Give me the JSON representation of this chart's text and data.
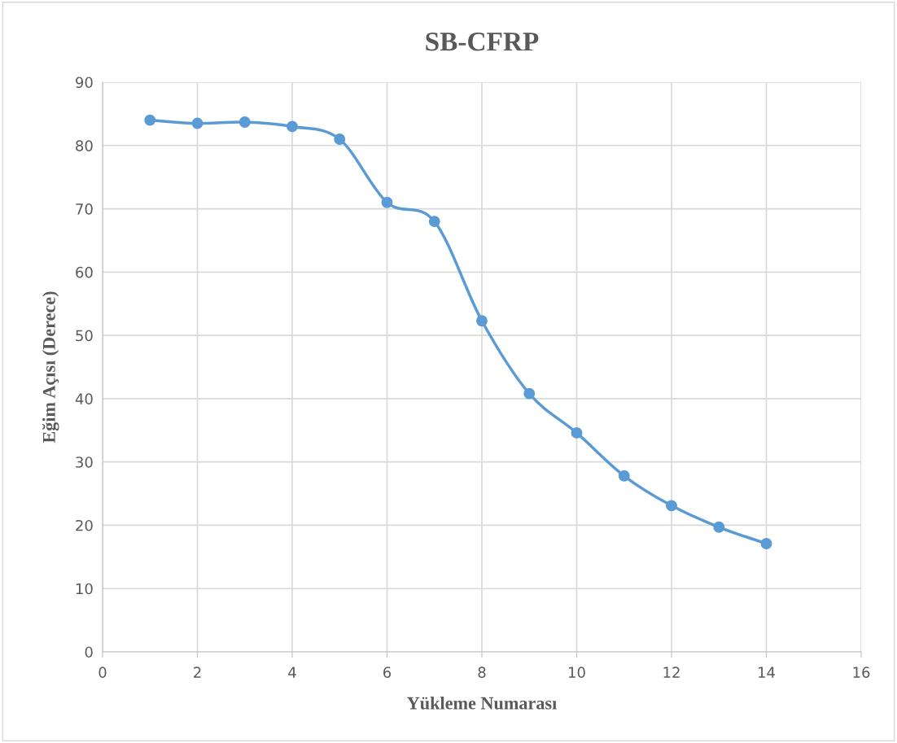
{
  "chart_data": {
    "type": "line",
    "title": "SB-CFRP",
    "xlabel": "Yükleme Numarası",
    "ylabel": "Eğim Açısı (Derece)",
    "x": [
      1,
      2,
      3,
      4,
      5,
      6,
      7,
      8,
      9,
      10,
      11,
      12,
      13,
      14
    ],
    "series": [
      {
        "color": "#5b9bd5",
        "values": [
          84,
          83.5,
          83.7,
          83,
          81,
          71,
          68,
          52.3,
          40.8,
          34.6,
          27.8,
          23.1,
          19.7,
          17.1
        ]
      }
    ],
    "xlim": [
      0,
      16
    ],
    "xticks": [
      0,
      2,
      4,
      6,
      8,
      10,
      12,
      14,
      16
    ],
    "ylim": [
      0,
      90
    ],
    "yticks": [
      0,
      10,
      20,
      30,
      40,
      50,
      60,
      70,
      80,
      90
    ],
    "grid": true,
    "marker": "circle",
    "line_style": "solid"
  }
}
